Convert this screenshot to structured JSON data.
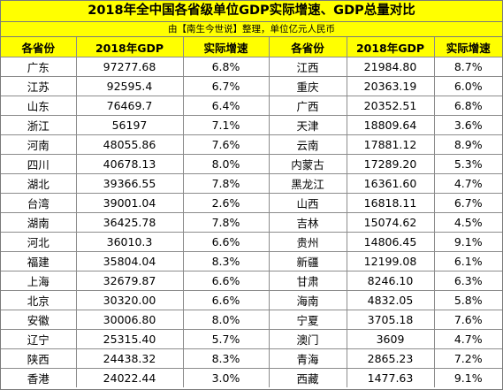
{
  "title": "2018年全中国各省级单位GDP实际增速、GDP总量对比",
  "subtitle": "由【南生今世说】整理，单位亿元人民币",
  "headers": [
    "各省份",
    "2018年GDP",
    "实际增速",
    "各省份",
    "2018年GDP",
    "实际增速"
  ],
  "rows": [
    [
      "广东",
      "97277.68",
      "6.8%",
      "江西",
      "21984.80",
      "8.7%"
    ],
    [
      "江苏",
      "92595.4",
      "6.7%",
      "重庆",
      "20363.19",
      "6.0%"
    ],
    [
      "山东",
      "76469.7",
      "6.4%",
      "广西",
      "20352.51",
      "6.8%"
    ],
    [
      "浙江",
      "56197",
      "7.1%",
      "天津",
      "18809.64",
      "3.6%"
    ],
    [
      "河南",
      "48055.86",
      "7.6%",
      "云南",
      "17881.12",
      "8.9%"
    ],
    [
      "四川",
      "40678.13",
      "8.0%",
      "内蒙古",
      "17289.20",
      "5.3%"
    ],
    [
      "湖北",
      "39366.55",
      "7.8%",
      "黑龙江",
      "16361.60",
      "4.7%"
    ],
    [
      "台湾",
      "39001.04",
      "2.6%",
      "山西",
      "16818.11",
      "6.7%"
    ],
    [
      "湖南",
      "36425.78",
      "7.8%",
      "吉林",
      "15074.62",
      "4.5%"
    ],
    [
      "河北",
      "36010.3",
      "6.6%",
      "贵州",
      "14806.45",
      "9.1%"
    ],
    [
      "福建",
      "35804.04",
      "8.3%",
      "新疆",
      "12199.08",
      "6.1%"
    ],
    [
      "上海",
      "32679.87",
      "6.6%",
      "甘肃",
      "8246.10",
      "6.3%"
    ],
    [
      "北京",
      "30320.00",
      "6.6%",
      "海南",
      "4832.05",
      "5.8%"
    ],
    [
      "安徽",
      "30006.80",
      "8.0%",
      "宁夏",
      "3705.18",
      "7.6%"
    ],
    [
      "辽宁",
      "25315.40",
      "5.7%",
      "澳门",
      "3609",
      "4.7%"
    ],
    [
      "陕西",
      "24438.32",
      "8.3%",
      "青海",
      "2865.23",
      "7.2%"
    ],
    [
      "香港",
      "24022.44",
      "3.0%",
      "西藏",
      "1477.63",
      "9.1%"
    ]
  ]
}
